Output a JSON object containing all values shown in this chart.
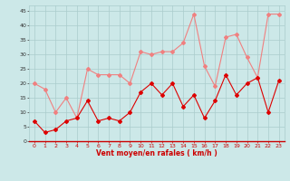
{
  "x": [
    0,
    1,
    2,
    3,
    4,
    5,
    6,
    7,
    8,
    9,
    10,
    11,
    12,
    13,
    14,
    15,
    16,
    17,
    18,
    19,
    20,
    21,
    22,
    23
  ],
  "rafales": [
    20,
    18,
    10,
    15,
    8,
    25,
    23,
    23,
    23,
    20,
    31,
    30,
    31,
    31,
    34,
    44,
    26,
    19,
    36,
    37,
    29,
    22,
    44,
    44
  ],
  "moyen": [
    7,
    3,
    4,
    7,
    8,
    14,
    7,
    8,
    7,
    10,
    17,
    20,
    16,
    20,
    12,
    16,
    8,
    14,
    23,
    16,
    20,
    22,
    10,
    21
  ],
  "rafales_color": "#f08080",
  "moyen_color": "#dd0000",
  "bg_color": "#cce8e8",
  "grid_color": "#aacccc",
  "xlabel": "Vent moyen/en rafales ( km/h )",
  "ytick_labels": [
    "0",
    "5",
    "10",
    "15",
    "20",
    "25",
    "30",
    "35",
    "40",
    "45"
  ],
  "yticks": [
    0,
    5,
    10,
    15,
    20,
    25,
    30,
    35,
    40,
    45
  ],
  "xticks": [
    0,
    1,
    2,
    3,
    4,
    5,
    6,
    7,
    8,
    9,
    10,
    11,
    12,
    13,
    14,
    15,
    16,
    17,
    18,
    19,
    20,
    21,
    22,
    23
  ],
  "ylim": [
    0,
    47
  ],
  "xlim": [
    -0.5,
    23.5
  ]
}
